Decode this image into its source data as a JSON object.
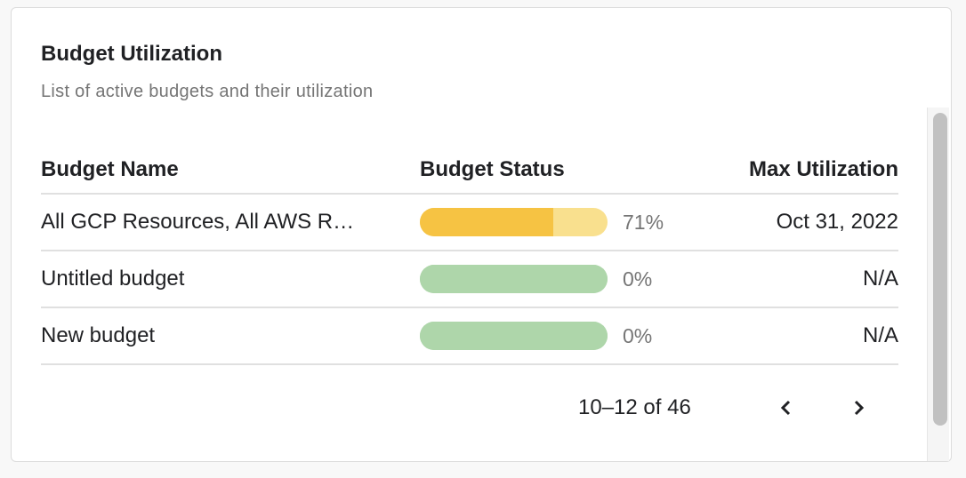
{
  "card": {
    "title": "Budget Utilization",
    "subtitle": "List of active budgets and their utilization"
  },
  "table": {
    "headers": {
      "name": "Budget Name",
      "status": "Budget Status",
      "max": "Max Utilization"
    },
    "rows": [
      {
        "name": "All GCP Resources, All AWS R…",
        "percent_label": "71%",
        "percent": 71,
        "bar_color": "#f6c343",
        "bar_track_color": "#f9e08e",
        "max_utilization": "Oct 31, 2022"
      },
      {
        "name": "Untitled budget",
        "percent_label": "0%",
        "percent": 0,
        "bar_color": "#aed6aa",
        "bar_track_color": "#aed6aa",
        "max_utilization": "N/A"
      },
      {
        "name": "New budget",
        "percent_label": "0%",
        "percent": 0,
        "bar_color": "#aed6aa",
        "bar_track_color": "#aed6aa",
        "max_utilization": "N/A"
      }
    ]
  },
  "pagination": {
    "range_label": "10–12 of 46",
    "prev_icon": "chevron-left-icon",
    "next_icon": "chevron-right-icon"
  }
}
